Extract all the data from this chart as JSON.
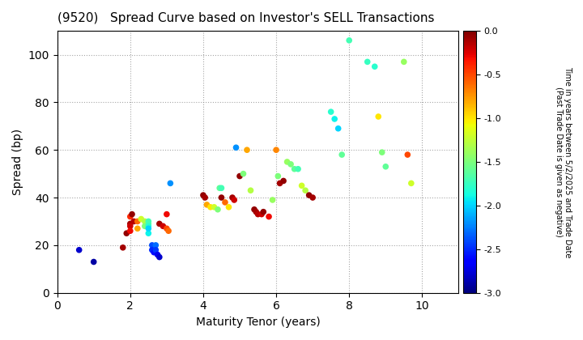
{
  "title": "(9520)   Spread Curve based on Investor's SELL Transactions",
  "xlabel": "Maturity Tenor (years)",
  "ylabel": "Spread (bp)",
  "colorbar_label_line1": "Time in years between 5/2/2025 and Trade Date",
  "colorbar_label_line2": "(Past Trade Date is given as negative)",
  "xlim": [
    0,
    11
  ],
  "ylim": [
    0,
    110
  ],
  "xticks": [
    0,
    2,
    4,
    6,
    8,
    10
  ],
  "yticks": [
    0,
    20,
    40,
    60,
    80,
    100
  ],
  "cmap": "jet",
  "vmin": -3.0,
  "vmax": 0.0,
  "points": [
    [
      0.6,
      18,
      -2.8
    ],
    [
      1.0,
      13,
      -2.9
    ],
    [
      1.8,
      19,
      -0.1
    ],
    [
      1.9,
      25,
      -0.05
    ],
    [
      2.0,
      29,
      -0.1
    ],
    [
      2.0,
      28,
      -0.2
    ],
    [
      2.0,
      26,
      -0.3
    ],
    [
      2.0,
      32,
      -0.4
    ],
    [
      2.05,
      33,
      -0.05
    ],
    [
      2.1,
      30,
      -0.15
    ],
    [
      2.2,
      30,
      -0.6
    ],
    [
      2.2,
      27,
      -0.8
    ],
    [
      2.3,
      31,
      -1.2
    ],
    [
      2.4,
      30,
      -1.3
    ],
    [
      2.4,
      28,
      -1.5
    ],
    [
      2.5,
      29,
      -1.6
    ],
    [
      2.5,
      30,
      -1.7
    ],
    [
      2.5,
      28,
      -1.8
    ],
    [
      2.5,
      25,
      -1.9
    ],
    [
      2.5,
      27,
      -2.0
    ],
    [
      2.6,
      20,
      -2.4
    ],
    [
      2.6,
      18,
      -2.5
    ],
    [
      2.65,
      17,
      -2.6
    ],
    [
      2.7,
      20,
      -2.3
    ],
    [
      2.7,
      18,
      -2.45
    ],
    [
      2.75,
      16,
      -2.7
    ],
    [
      2.8,
      15,
      -2.8
    ],
    [
      2.8,
      29,
      -0.1
    ],
    [
      2.9,
      28,
      -0.2
    ],
    [
      3.0,
      33,
      -0.3
    ],
    [
      3.0,
      27,
      -0.5
    ],
    [
      3.05,
      26,
      -0.6
    ],
    [
      3.1,
      46,
      -2.2
    ],
    [
      4.0,
      41,
      -0.05
    ],
    [
      4.05,
      40,
      -0.1
    ],
    [
      4.1,
      37,
      -0.8
    ],
    [
      4.2,
      36,
      -1.0
    ],
    [
      4.3,
      36,
      -1.2
    ],
    [
      4.4,
      35,
      -1.5
    ],
    [
      4.45,
      44,
      -1.6
    ],
    [
      4.5,
      44,
      -1.7
    ],
    [
      4.5,
      40,
      -0.05
    ],
    [
      4.6,
      38,
      -0.6
    ],
    [
      4.7,
      36,
      -1.0
    ],
    [
      4.8,
      40,
      -0.1
    ],
    [
      4.85,
      39,
      -0.2
    ],
    [
      4.9,
      61,
      -2.2
    ],
    [
      5.0,
      49,
      -0.05
    ],
    [
      5.1,
      50,
      -1.5
    ],
    [
      5.2,
      60,
      -0.8
    ],
    [
      5.3,
      43,
      -1.3
    ],
    [
      5.4,
      35,
      -0.05
    ],
    [
      5.45,
      34,
      -0.1
    ],
    [
      5.5,
      33,
      -0.15
    ],
    [
      5.6,
      33,
      -0.2
    ],
    [
      5.65,
      34,
      -0.05
    ],
    [
      5.8,
      32,
      -0.3
    ],
    [
      5.9,
      39,
      -1.4
    ],
    [
      6.0,
      60,
      -0.7
    ],
    [
      6.05,
      49,
      -1.5
    ],
    [
      6.1,
      46,
      -0.1
    ],
    [
      6.2,
      47,
      -0.05
    ],
    [
      6.3,
      55,
      -1.4
    ],
    [
      6.4,
      54,
      -1.5
    ],
    [
      6.5,
      52,
      -1.6
    ],
    [
      6.6,
      52,
      -1.7
    ],
    [
      6.7,
      45,
      -1.2
    ],
    [
      6.8,
      43,
      -1.3
    ],
    [
      6.9,
      41,
      -0.05
    ],
    [
      7.0,
      40,
      -0.1
    ],
    [
      7.5,
      76,
      -1.8
    ],
    [
      7.6,
      73,
      -1.9
    ],
    [
      7.7,
      69,
      -2.0
    ],
    [
      7.8,
      58,
      -1.6
    ],
    [
      8.0,
      106,
      -1.7
    ],
    [
      8.5,
      97,
      -1.75
    ],
    [
      8.7,
      95,
      -1.8
    ],
    [
      8.8,
      74,
      -1.0
    ],
    [
      8.9,
      59,
      -1.5
    ],
    [
      9.0,
      53,
      -1.6
    ],
    [
      9.5,
      97,
      -1.4
    ],
    [
      9.6,
      58,
      -0.5
    ],
    [
      9.7,
      46,
      -1.2
    ]
  ]
}
